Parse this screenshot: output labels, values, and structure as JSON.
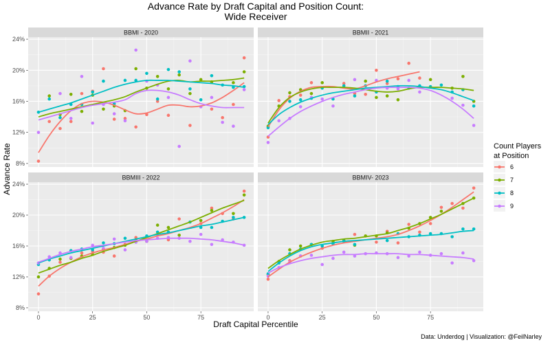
{
  "chart_data": {
    "type": "scatter",
    "title": "Advance Rate by Draft Capital and Position Count:",
    "subtitle": "Wide Receiver",
    "xlabel": "Draft Capital Percentile",
    "ylabel": "Advance Rate",
    "caption": "Data: Underdog | Visualization: @FeilNarley",
    "xlim": [
      -4.75,
      99.4
    ],
    "ylim": [
      7.55,
      24.27
    ],
    "x_ticks": [
      0,
      25,
      50,
      75
    ],
    "x_tick_labels": [
      "0",
      "25",
      "50",
      "75"
    ],
    "y_ticks": [
      8,
      12,
      16,
      20,
      24
    ],
    "y_tick_labels": [
      "8%",
      "12%",
      "16%",
      "20%",
      "24%"
    ],
    "grid": true,
    "legend": {
      "title_line1": "Count Players",
      "title_line2": "at Position",
      "placement": "right",
      "entries": [
        "6",
        "7",
        "8",
        "9"
      ]
    },
    "colors": {
      "6": "#F8766D",
      "7": "#7CAE00",
      "8": "#00BFC4",
      "9": "#C77CFF"
    },
    "x": [
      0,
      5,
      10,
      15,
      20,
      25,
      30,
      35,
      40,
      45,
      50,
      55,
      60,
      65,
      70,
      75,
      80,
      85,
      90,
      95
    ],
    "panels": [
      {
        "label": "BBMI - 2020",
        "series": [
          {
            "name": "6",
            "points": [
              8.3,
              13.4,
              12.5,
              13.4,
              17.0,
              17.3,
              20.2,
              13.7,
              13.8,
              12.7,
              14.3,
              16.0,
              14.2,
              null,
              12.9,
              null,
              15.0,
              13.9,
              15.6,
              21.6
            ],
            "smooth": [
              9.4,
              11.6,
              13.4,
              14.8,
              15.7,
              16.0,
              15.9,
              15.5,
              14.9,
              14.4,
              14.5,
              15.0,
              15.5,
              15.5,
              15.3,
              15.4,
              15.8,
              16.5,
              17.4,
              18.4
            ]
          },
          {
            "name": "7",
            "points": [
              null,
              16.7,
              14.3,
              16.9,
              14.7,
              16.8,
              15.0,
              15.4,
              14.8,
              20.2,
              17.7,
              19.2,
              17.6,
              19.4,
              17.0,
              18.8,
              18.5,
              null,
              18.4,
              19.8
            ],
            "smooth": [
              14.0,
              14.4,
              14.7,
              15.0,
              15.3,
              15.6,
              15.9,
              16.2,
              16.6,
              17.2,
              17.7,
              18.2,
              18.6,
              18.7,
              18.5,
              18.6,
              18.6,
              18.7,
              18.8,
              19.0
            ]
          },
          {
            "name": "8",
            "points": [
              14.6,
              16.3,
              13.9,
              15.6,
              15.6,
              17.2,
              18.6,
              15.7,
              18.7,
              18.7,
              19.6,
              16.3,
              20.1,
              19.8,
              17.6,
              16.2,
              19.3,
              18.1,
              17.8,
              17.9
            ],
            "smooth": [
              14.6,
              15.0,
              15.4,
              15.8,
              16.3,
              16.8,
              17.3,
              17.8,
              18.2,
              18.5,
              18.7,
              18.7,
              18.7,
              18.6,
              18.5,
              18.4,
              18.3,
              18.1,
              18.0,
              17.8
            ]
          },
          {
            "name": "9",
            "points": [
              12.0,
              null,
              17.0,
              13.8,
              19.2,
              13.2,
              15.6,
              14.4,
              13.5,
              22.6,
              18.6,
              18.1,
              16.5,
              10.2,
              21.2,
              15.3,
              16.5,
              13.3,
              12.8,
              17.5
            ],
            "smooth": [
              13.6,
              14.0,
              14.4,
              14.8,
              15.2,
              15.5,
              15.7,
              15.9,
              16.2,
              17.0,
              17.4,
              17.4,
              17.2,
              16.8,
              16.2,
              15.7,
              15.4,
              15.2,
              15.2,
              15.2
            ]
          }
        ]
      },
      {
        "label": "BBMII - 2021",
        "series": [
          {
            "name": "6",
            "points": [
              11.4,
              16.1,
              16.6,
              16.8,
              18.4,
              null,
              null,
              18.3,
              17.0,
              16.9,
              20.0,
              18.3,
              18.9,
              20.9,
              19.0,
              null,
              null,
              null,
              null,
              null
            ],
            "smooth": [
              12.7,
              14.9,
              16.4,
              17.3,
              17.8,
              17.9,
              17.9,
              17.7,
              17.6,
              18.0,
              18.5,
              18.9,
              19.2,
              19.5,
              19.8,
              null,
              null,
              null,
              null,
              null
            ]
          },
          {
            "name": "7",
            "points": [
              12.8,
              15.4,
              17.1,
              17.5,
              17.0,
              18.4,
              null,
              null,
              null,
              18.6,
              16.5,
              16.7,
              16.2,
              null,
              null,
              18.8,
              null,
              17.7,
              19.2,
              16.0
            ],
            "smooth": [
              13.2,
              15.2,
              16.5,
              17.2,
              17.6,
              17.8,
              17.8,
              17.8,
              17.7,
              17.5,
              17.3,
              17.2,
              17.3,
              17.6,
              17.8,
              17.8,
              17.8,
              17.7,
              17.6,
              17.4
            ]
          },
          {
            "name": "8",
            "points": [
              12.6,
              null,
              16.0,
              16.2,
              16.4,
              17.7,
              16.3,
              18.0,
              16.7,
              18.0,
              17.2,
              18.6,
              17.9,
              17.7,
              18.0,
              17.9,
              18.1,
              17.2,
              17.5,
              15.4
            ],
            "smooth": [
              13.0,
              14.3,
              15.2,
              15.9,
              16.4,
              16.8,
              17.1,
              17.3,
              17.5,
              17.7,
              17.8,
              17.9,
              18.0,
              18.0,
              17.9,
              17.7,
              17.5,
              17.1,
              16.6,
              16.1
            ]
          },
          {
            "name": "9",
            "points": [
              10.7,
              13.5,
              13.8,
              15.3,
              16.5,
              16.3,
              15.4,
              null,
              18.8,
              null,
              18.7,
              17.7,
              17.6,
              18.7,
              17.2,
              null,
              null,
              16.4,
              15.5,
              12.9
            ],
            "smooth": [
              11.5,
              12.7,
              13.8,
              14.7,
              15.4,
              16.0,
              16.5,
              16.9,
              17.2,
              17.5,
              17.7,
              17.8,
              17.8,
              17.8,
              17.7,
              17.4,
              16.8,
              16.0,
              15.0,
              13.8
            ]
          }
        ]
      },
      {
        "label": "BBMIII - 2022",
        "series": [
          {
            "name": "6",
            "points": [
              9.8,
              12.1,
              13.9,
              null,
              15.1,
              15.3,
              15.2,
              14.7,
              16.2,
              17.1,
              16.6,
              17.5,
              16.8,
              19.5,
              null,
              18.9,
              20.9,
              20.2,
              19.5,
              23.1
            ],
            "smooth": [
              10.8,
              12.1,
              13.1,
              13.9,
              14.6,
              15.1,
              15.5,
              15.8,
              16.2,
              16.6,
              16.9,
              17.3,
              17.6,
              18.0,
              18.4,
              18.9,
              19.6,
              20.3,
              21.1,
              22.0
            ]
          },
          {
            "name": "7",
            "points": [
              12.0,
              13.1,
              14.3,
              14.4,
              14.7,
              14.9,
              15.6,
              15.8,
              16.1,
              16.8,
              16.6,
              18.7,
              18.4,
              17.4,
              null,
              19.3,
              20.6,
              null,
              20.2,
              22.6
            ],
            "smooth": [
              12.5,
              13.0,
              13.5,
              13.9,
              14.4,
              14.8,
              15.3,
              15.7,
              16.1,
              16.6,
              17.1,
              17.6,
              18.1,
              18.6,
              19.1,
              19.7,
              20.3,
              20.9,
              21.4,
              21.9
            ]
          },
          {
            "name": "8",
            "points": [
              13.6,
              14.2,
              null,
              15.4,
              15.6,
              15.5,
              16.4,
              16.3,
              17.0,
              16.5,
              17.3,
              17.8,
              17.8,
              null,
              19.1,
              18.4,
              18.4,
              19.2,
              19.7,
              19.7
            ],
            "smooth": [
              13.8,
              14.3,
              14.7,
              15.1,
              15.4,
              15.7,
              16.0,
              16.3,
              16.6,
              16.9,
              17.2,
              17.5,
              17.7,
              18.0,
              18.3,
              18.6,
              18.8,
              19.1,
              19.4,
              19.7
            ]
          },
          {
            "name": "9",
            "points": [
              13.8,
              14.6,
              15.1,
              14.5,
              null,
              16.1,
              15.7,
              16.9,
              15.5,
              16.5,
              16.6,
              17.0,
              17.1,
              17.0,
              16.6,
              17.5,
              16.2,
              16.8,
              16.5,
              16.1
            ],
            "smooth": [
              13.9,
              14.4,
              14.9,
              15.3,
              15.6,
              15.9,
              16.1,
              16.3,
              16.5,
              16.7,
              16.8,
              16.9,
              17.0,
              17.0,
              17.0,
              16.9,
              16.8,
              16.6,
              16.4,
              16.1
            ]
          }
        ]
      },
      {
        "label": "BBMIV- 2023",
        "series": [
          {
            "name": "6",
            "points": [
              11.7,
              null,
              14.1,
              14.7,
              null,
              15.7,
              null,
              16.6,
              17.5,
              null,
              16.5,
              17.9,
              16.4,
              18.8,
              17.8,
              18.9,
              21.0,
              21.5,
              20.9,
              23.5
            ],
            "smooth": [
              12.0,
              13.0,
              13.9,
              14.6,
              15.2,
              15.7,
              16.1,
              16.4,
              16.6,
              16.8,
              17.0,
              17.2,
              17.5,
              18.0,
              18.6,
              19.3,
              20.1,
              21.0,
              22.0,
              23.0
            ]
          },
          {
            "name": "7",
            "points": [
              12.3,
              14.0,
              15.5,
              16.0,
              16.2,
              null,
              16.6,
              16.7,
              16.1,
              17.3,
              17.3,
              17.7,
              null,
              18.3,
              18.9,
              19.7,
              20.5,
              null,
              21.5,
              22.2
            ],
            "smooth": [
              13.1,
              14.1,
              14.9,
              15.6,
              16.1,
              16.5,
              16.7,
              16.9,
              17.0,
              17.2,
              17.4,
              17.6,
              18.0,
              18.4,
              18.9,
              19.5,
              20.1,
              20.8,
              21.5,
              22.2
            ]
          },
          {
            "name": "8",
            "points": [
              12.4,
              13.8,
              15.0,
              15.6,
              16.2,
              16.0,
              16.3,
              16.6,
              16.2,
              null,
              null,
              16.7,
              17.6,
              17.2,
              17.4,
              17.6,
              17.6,
              17.2,
              18.2,
              18.2
            ],
            "smooth": [
              12.7,
              13.8,
              14.7,
              15.4,
              15.9,
              16.2,
              16.4,
              16.6,
              16.7,
              16.8,
              16.9,
              17.0,
              17.1,
              17.2,
              17.3,
              17.4,
              17.5,
              17.7,
              17.9,
              18.0
            ]
          },
          {
            "name": "9",
            "points": [
              12.1,
              13.2,
              13.9,
              14.7,
              14.8,
              13.6,
              14.4,
              15.2,
              14.7,
              15.0,
              15.1,
              15.0,
              14.5,
              14.7,
              15.2,
              14.8,
              15.0,
              13.8,
              15.1,
              14.1
            ],
            "smooth": [
              12.5,
              13.2,
              13.7,
              14.1,
              14.4,
              14.6,
              14.8,
              14.9,
              14.9,
              15.0,
              15.0,
              15.0,
              15.0,
              14.9,
              14.9,
              14.8,
              14.7,
              14.6,
              14.5,
              14.3
            ]
          }
        ]
      }
    ]
  }
}
